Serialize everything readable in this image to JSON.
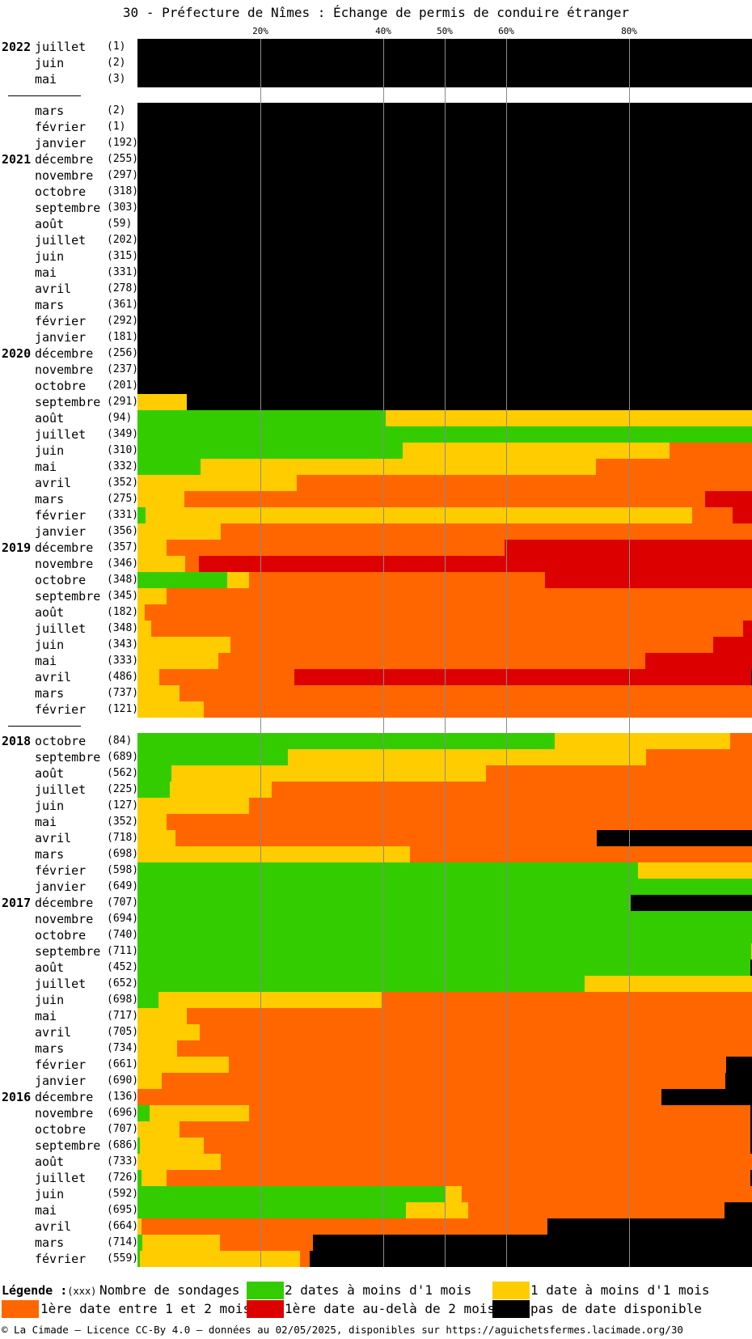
{
  "title": "30 - Préfecture de Nîmes : Échange de permis de conduire étranger",
  "ticks": [
    {
      "value": 20,
      "label": "20%"
    },
    {
      "value": 40,
      "label": "40%"
    },
    {
      "value": 50,
      "label": "50%"
    },
    {
      "value": 60,
      "label": "60%"
    },
    {
      "value": 80,
      "label": "80%"
    }
  ],
  "colors": {
    "green": "#33cc00",
    "yellow": "#ffcc00",
    "orange": "#ff6600",
    "red": "#dd0000",
    "black": "#000000"
  },
  "legend": {
    "title": "Légende :",
    "count_format": "(xxx)",
    "count_label": "Nombre de sondages",
    "items": [
      {
        "color": "green",
        "label": "2 dates à moins d'1 mois"
      },
      {
        "color": "yellow",
        "label": "1 date à moins d'1 mois"
      },
      {
        "color": "orange",
        "label": "1ère date entre 1 et 2 mois"
      },
      {
        "color": "red",
        "label": "1ère date au-delà de 2 mois"
      },
      {
        "color": "black",
        "label": "pas de date disponible"
      }
    ]
  },
  "footer": "© La Cimade — Licence CC-By 4.0 — données au 02/05/2025, disponibles sur https://aguichetsfermes.lacimade.org/30",
  "chart_data": {
    "type": "bar",
    "orientation": "horizontal-stacked-100",
    "xlim": [
      0,
      100
    ],
    "grid": true,
    "legend_position": "bottom",
    "series_order": [
      "green",
      "yellow",
      "orange",
      "red",
      "black"
    ],
    "groups": [
      {
        "rows": [
          {
            "year": "2022",
            "month": "juillet",
            "count": "(1)",
            "values": [
              0,
              0,
              0,
              0,
              100
            ]
          },
          {
            "year": "",
            "month": "juin",
            "count": "(2)",
            "values": [
              0,
              0,
              0,
              0,
              100
            ]
          },
          {
            "year": "",
            "month": "mai",
            "count": "(3)",
            "values": [
              0,
              0,
              0,
              0,
              100
            ]
          }
        ]
      },
      {
        "rows": [
          {
            "year": "",
            "month": "mars",
            "count": "(2)",
            "values": [
              0,
              0,
              0,
              0,
              100
            ]
          },
          {
            "year": "",
            "month": "février",
            "count": "(1)",
            "values": [
              0,
              0,
              0,
              0,
              100
            ]
          },
          {
            "year": "",
            "month": "janvier",
            "count": "(192)",
            "values": [
              0,
              0,
              0,
              0,
              100
            ]
          },
          {
            "year": "2021",
            "month": "décembre",
            "count": "(255)",
            "values": [
              0,
              0,
              0,
              0,
              100
            ]
          },
          {
            "year": "",
            "month": "novembre",
            "count": "(297)",
            "values": [
              0,
              0,
              0,
              0,
              100
            ]
          },
          {
            "year": "",
            "month": "octobre",
            "count": "(318)",
            "values": [
              0,
              0,
              0,
              0,
              100
            ]
          },
          {
            "year": "",
            "month": "septembre",
            "count": "(303)",
            "values": [
              0,
              0,
              0,
              0,
              100
            ]
          },
          {
            "year": "",
            "month": "août",
            "count": "(59)",
            "values": [
              0,
              0,
              0,
              0,
              100
            ]
          },
          {
            "year": "",
            "month": "juillet",
            "count": "(202)",
            "values": [
              0,
              0,
              0,
              0,
              100
            ]
          },
          {
            "year": "",
            "month": "juin",
            "count": "(315)",
            "values": [
              0,
              0,
              0,
              0,
              100
            ]
          },
          {
            "year": "",
            "month": "mai",
            "count": "(331)",
            "values": [
              0,
              0,
              0,
              0,
              100
            ]
          },
          {
            "year": "",
            "month": "avril",
            "count": "(278)",
            "values": [
              0,
              0,
              0,
              0,
              100
            ]
          },
          {
            "year": "",
            "month": "mars",
            "count": "(361)",
            "values": [
              0,
              0,
              0,
              0,
              100
            ]
          },
          {
            "year": "",
            "month": "février",
            "count": "(292)",
            "values": [
              0,
              0,
              0,
              0,
              100
            ]
          },
          {
            "year": "",
            "month": "janvier",
            "count": "(181)",
            "values": [
              0,
              0,
              0,
              0,
              100
            ]
          },
          {
            "year": "2020",
            "month": "décembre",
            "count": "(256)",
            "values": [
              0,
              0,
              0,
              0,
              100
            ]
          },
          {
            "year": "",
            "month": "novembre",
            "count": "(237)",
            "values": [
              0,
              0,
              0,
              0,
              100
            ]
          },
          {
            "year": "",
            "month": "octobre",
            "count": "(201)",
            "values": [
              0,
              0,
              0,
              0,
              100
            ]
          },
          {
            "year": "",
            "month": "septembre",
            "count": "(291)",
            "values": [
              0,
              8,
              0,
              0,
              92
            ]
          },
          {
            "year": "",
            "month": "août",
            "count": "(94)",
            "values": [
              40.4,
              59.6,
              0,
              0,
              0
            ]
          },
          {
            "year": "",
            "month": "juillet",
            "count": "(349)",
            "values": [
              100,
              0,
              0,
              0,
              0
            ]
          },
          {
            "year": "",
            "month": "juin",
            "count": "(310)",
            "values": [
              43.2,
              43.4,
              13.4,
              0,
              0
            ]
          },
          {
            "year": "",
            "month": "mai",
            "count": "(332)",
            "values": [
              10.2,
              64.4,
              25.4,
              0,
              0
            ]
          },
          {
            "year": "",
            "month": "avril",
            "count": "(352)",
            "values": [
              0,
              25.9,
              74.1,
              0,
              0
            ]
          },
          {
            "year": "",
            "month": "mars",
            "count": "(275)",
            "values": [
              0,
              7.6,
              84.8,
              7.6,
              0
            ]
          },
          {
            "year": "",
            "month": "février",
            "count": "(331)",
            "values": [
              1.3,
              88.9,
              6.7,
              3.1,
              0
            ]
          },
          {
            "year": "",
            "month": "janvier",
            "count": "(356)",
            "values": [
              0,
              13.5,
              86.5,
              0,
              0
            ]
          },
          {
            "year": "2019",
            "month": "décembre",
            "count": "(357)",
            "values": [
              0,
              4.7,
              55,
              40.3,
              0
            ]
          },
          {
            "year": "",
            "month": "novembre",
            "count": "(346)",
            "values": [
              0,
              7.7,
              2.3,
              90,
              0
            ]
          },
          {
            "year": "",
            "month": "octobre",
            "count": "(348)",
            "values": [
              14.6,
              3.5,
              48.2,
              33.7,
              0
            ]
          },
          {
            "year": "",
            "month": "septembre",
            "count": "(345)",
            "values": [
              0,
              4.7,
              95.3,
              0,
              0
            ]
          },
          {
            "year": "",
            "month": "août",
            "count": "(182)",
            "values": [
              0,
              1.2,
              98.8,
              0,
              0
            ]
          },
          {
            "year": "",
            "month": "juillet",
            "count": "(348)",
            "values": [
              0,
              2.3,
              96.3,
              1.4,
              0
            ]
          },
          {
            "year": "",
            "month": "juin",
            "count": "(343)",
            "values": [
              0,
              15.1,
              78.6,
              6.3,
              0
            ]
          },
          {
            "year": "",
            "month": "mai",
            "count": "(333)",
            "values": [
              0,
              13.2,
              69.4,
              17.4,
              0
            ]
          },
          {
            "year": "",
            "month": "avril",
            "count": "(486)",
            "values": [
              0,
              3.5,
              22,
              74.4,
              0.1
            ]
          },
          {
            "year": "",
            "month": "mars",
            "count": "(737)",
            "values": [
              0,
              6.8,
              93.2,
              0,
              0
            ]
          },
          {
            "year": "",
            "month": "février",
            "count": "(121)",
            "values": [
              0,
              10.8,
              89.2,
              0,
              0
            ]
          }
        ]
      },
      {
        "rows": [
          {
            "year": "2018",
            "month": "octobre",
            "count": "(84)",
            "values": [
              67.9,
              28.5,
              3.6,
              0,
              0
            ]
          },
          {
            "year": "",
            "month": "septembre",
            "count": "(689)",
            "values": [
              24.5,
              58.3,
              17.2,
              0,
              0
            ]
          },
          {
            "year": "",
            "month": "août",
            "count": "(562)",
            "values": [
              5.5,
              51.2,
              43.3,
              0,
              0
            ]
          },
          {
            "year": "",
            "month": "juillet",
            "count": "(225)",
            "values": [
              5.3,
              16.5,
              78.2,
              0,
              0
            ]
          },
          {
            "year": "",
            "month": "juin",
            "count": "(127)",
            "values": [
              0,
              18.1,
              81.9,
              0,
              0
            ]
          },
          {
            "year": "",
            "month": "mai",
            "count": "(352)",
            "values": [
              0,
              4.8,
              95.2,
              0,
              0
            ]
          },
          {
            "year": "",
            "month": "avril",
            "count": "(718)",
            "values": [
              0,
              6.2,
              68.5,
              0,
              25.3
            ]
          },
          {
            "year": "",
            "month": "mars",
            "count": "(698)",
            "values": [
              0,
              44.3,
              55.7,
              0,
              0
            ]
          },
          {
            "year": "",
            "month": "février",
            "count": "(598)",
            "values": [
              81.5,
              18.5,
              0,
              0,
              0
            ]
          },
          {
            "year": "",
            "month": "janvier",
            "count": "(649)",
            "values": [
              100,
              0,
              0,
              0,
              0
            ]
          },
          {
            "year": "2017",
            "month": "décembre",
            "count": "(707)",
            "values": [
              80.3,
              0,
              0,
              0,
              19.7
            ]
          },
          {
            "year": "",
            "month": "novembre",
            "count": "(694)",
            "values": [
              100,
              0,
              0,
              0,
              0
            ]
          },
          {
            "year": "",
            "month": "octobre",
            "count": "(740)",
            "values": [
              100,
              0,
              0,
              0,
              0
            ]
          },
          {
            "year": "",
            "month": "septembre",
            "count": "(711)",
            "values": [
              99.9,
              0.1,
              0,
              0,
              0
            ]
          },
          {
            "year": "",
            "month": "août",
            "count": "(452)",
            "values": [
              99.7,
              0,
              0,
              0,
              0.3
            ]
          },
          {
            "year": "",
            "month": "juillet",
            "count": "(652)",
            "values": [
              72.8,
              27.2,
              0,
              0,
              0
            ]
          },
          {
            "year": "",
            "month": "juin",
            "count": "(698)",
            "values": [
              3.4,
              36.3,
              60.3,
              0,
              0
            ]
          },
          {
            "year": "",
            "month": "mai",
            "count": "(717)",
            "values": [
              0,
              8,
              92,
              0,
              0
            ]
          },
          {
            "year": "",
            "month": "avril",
            "count": "(705)",
            "values": [
              0,
              10.1,
              89.9,
              0,
              0
            ]
          },
          {
            "year": "",
            "month": "mars",
            "count": "(734)",
            "values": [
              0,
              6.5,
              93.5,
              0,
              0
            ]
          },
          {
            "year": "",
            "month": "février",
            "count": "(661)",
            "values": [
              0,
              14.9,
              80.9,
              0,
              4.2
            ]
          },
          {
            "year": "",
            "month": "janvier",
            "count": "(690)",
            "values": [
              0,
              4,
              91.7,
              0,
              4.3
            ]
          },
          {
            "year": "2016",
            "month": "décembre",
            "count": "(136)",
            "values": [
              0,
              0,
              85.3,
              0,
              14.7
            ]
          },
          {
            "year": "",
            "month": "novembre",
            "count": "(696)",
            "values": [
              2,
              16.2,
              81.5,
              0,
              0.3
            ]
          },
          {
            "year": "",
            "month": "octobre",
            "count": "(707)",
            "values": [
              0,
              6.8,
              93,
              0,
              0.2
            ]
          },
          {
            "year": "",
            "month": "septembre",
            "count": "(686)",
            "values": [
              0.4,
              10.4,
              89,
              0,
              0.2
            ]
          },
          {
            "year": "",
            "month": "août",
            "count": "(733)",
            "values": [
              0,
              13.6,
              86.4,
              0,
              0
            ]
          },
          {
            "year": "",
            "month": "juillet",
            "count": "(726)",
            "values": [
              0.6,
              4.2,
              94.9,
              0,
              0.3
            ]
          },
          {
            "year": "",
            "month": "juin",
            "count": "(592)",
            "values": [
              50,
              2.8,
              47.2,
              0,
              0
            ]
          },
          {
            "year": "",
            "month": "mai",
            "count": "(695)",
            "values": [
              43.7,
              10.1,
              41.7,
              0,
              4.5
            ]
          },
          {
            "year": "",
            "month": "avril",
            "count": "(664)",
            "values": [
              0,
              0.7,
              66,
              0,
              33.3
            ]
          },
          {
            "year": "",
            "month": "mars",
            "count": "(714)",
            "values": [
              0.8,
              12.6,
              15.2,
              0,
              71.4
            ]
          },
          {
            "year": "",
            "month": "février",
            "count": "(559)",
            "values": [
              0.4,
              26,
              1.6,
              0,
              72
            ]
          }
        ]
      }
    ]
  }
}
